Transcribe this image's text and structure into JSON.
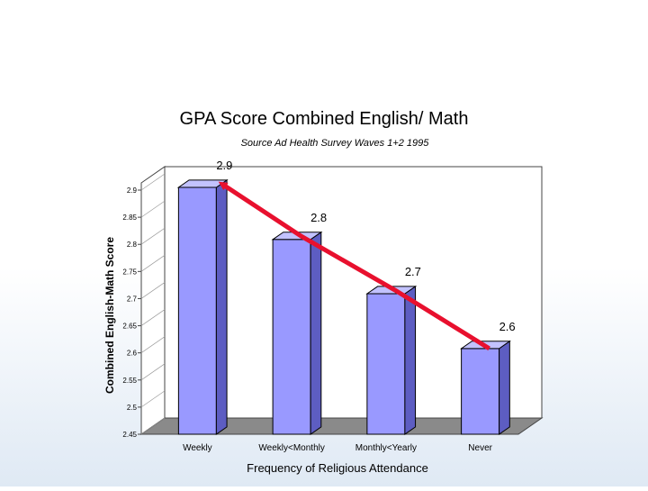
{
  "chart_data": {
    "type": "bar",
    "title": "GPA Score Combined English/ Math",
    "subtitle": "Source Ad Health Survey Waves 1+2 1995",
    "xlabel": "Frequency of Religious Attendance",
    "ylabel": "Combined English-Math Score",
    "categories": [
      "Weekly",
      "Weekly<Monthly",
      "Monthly<Yearly",
      "Never"
    ],
    "values": [
      2.905,
      2.809,
      2.709,
      2.608
    ],
    "data_labels": [
      "2.9",
      "2.8",
      "2.7",
      "2.6"
    ],
    "yticks": [
      "2.45",
      "2.5",
      "2.55",
      "2.6",
      "2.65",
      "2.7",
      "2.75",
      "2.8",
      "2.85",
      "2.9"
    ],
    "ylim": [
      2.45,
      2.9
    ],
    "grid": false,
    "legend": "none",
    "style": "3d-bar",
    "colors": {
      "bar_front": "#9999ff",
      "bar_side": "#5d5dc2",
      "bar_top": "#c2c2ff",
      "wall": "#ffffff",
      "floor": "#8a8a8a",
      "trend_arrow": "#e8102e"
    }
  }
}
